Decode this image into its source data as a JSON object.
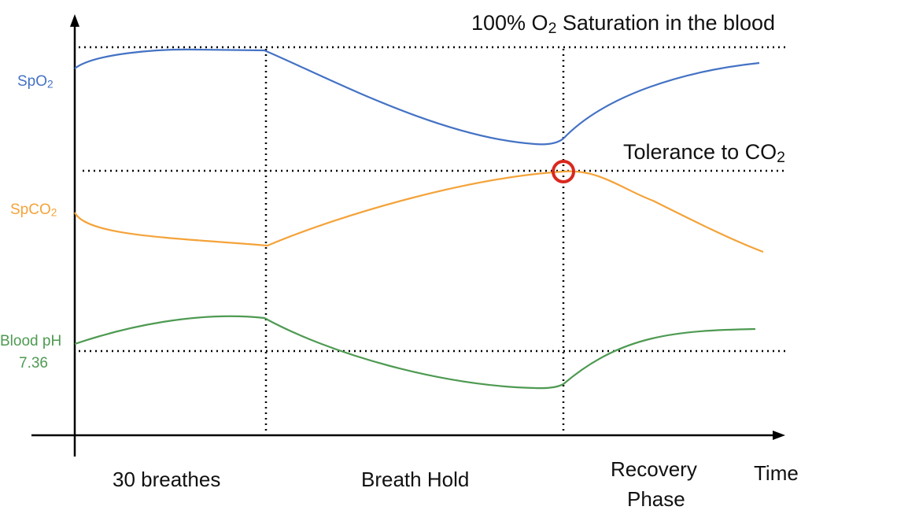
{
  "annotations": {
    "o2_saturation": {
      "pre": "100% O",
      "sub": "2",
      "post": " Saturation in the blood"
    },
    "co2_tolerance": {
      "pre": "Tolerance to CO",
      "sub": "2",
      "post": ""
    }
  },
  "y_labels": {
    "spo2": {
      "pre": "SpO",
      "sub": "2",
      "color": "#4472C4"
    },
    "spco2": {
      "pre": "SpCO",
      "sub": "2",
      "color": "#F4A33A"
    },
    "ph_line1": "Blood pH",
    "ph_line2": "7.36",
    "ph_color": "#4E9A52"
  },
  "x_labels": {
    "breathes": "30 breathes",
    "hold": "Breath Hold",
    "recovery_line1": "Recovery",
    "recovery_line2": "Phase",
    "time": "Time"
  },
  "colors": {
    "spo2": "#4472C4",
    "spco2": "#F4A33A",
    "ph": "#4E9A52",
    "marker": "#D9291F",
    "axis": "#000000"
  }
}
